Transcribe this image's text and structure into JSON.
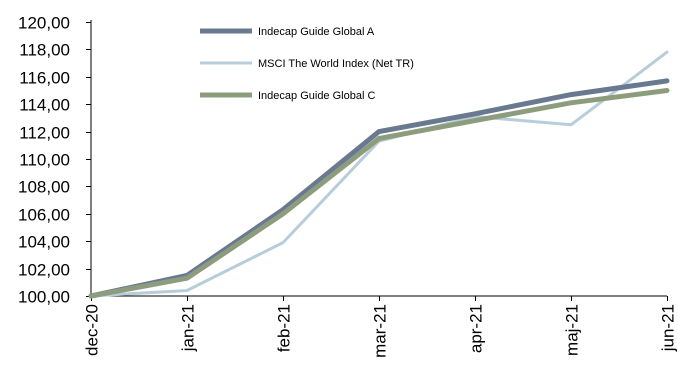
{
  "chart_data": {
    "type": "line",
    "title": "",
    "xlabel": "",
    "ylabel": "",
    "categories": [
      "dec-20",
      "jan-21",
      "feb-21",
      "mar-21",
      "apr-21",
      "maj-21",
      "jun-21"
    ],
    "yticks": [
      "100,00",
      "102,00",
      "104,00",
      "106,00",
      "108,00",
      "110,00",
      "112,00",
      "114,00",
      "116,00",
      "118,00",
      "120,00"
    ],
    "ylim": [
      100,
      120
    ],
    "grid": false,
    "legend_position": "top-center",
    "series": [
      {
        "name": "Indecap Guide Global A",
        "color": "#687990",
        "values": [
          100.0,
          101.5,
          106.3,
          112.0,
          113.3,
          114.7,
          115.7
        ]
      },
      {
        "name": "MSCI The World Index (Net TR)",
        "color": "#b8cdda",
        "values": [
          100.0,
          100.4,
          103.9,
          111.3,
          113.1,
          112.5,
          117.8
        ]
      },
      {
        "name": "Indecap Guide Global C",
        "color": "#8e9c7e",
        "values": [
          100.0,
          101.3,
          106.0,
          111.5,
          112.8,
          114.1,
          115.0
        ]
      }
    ]
  }
}
